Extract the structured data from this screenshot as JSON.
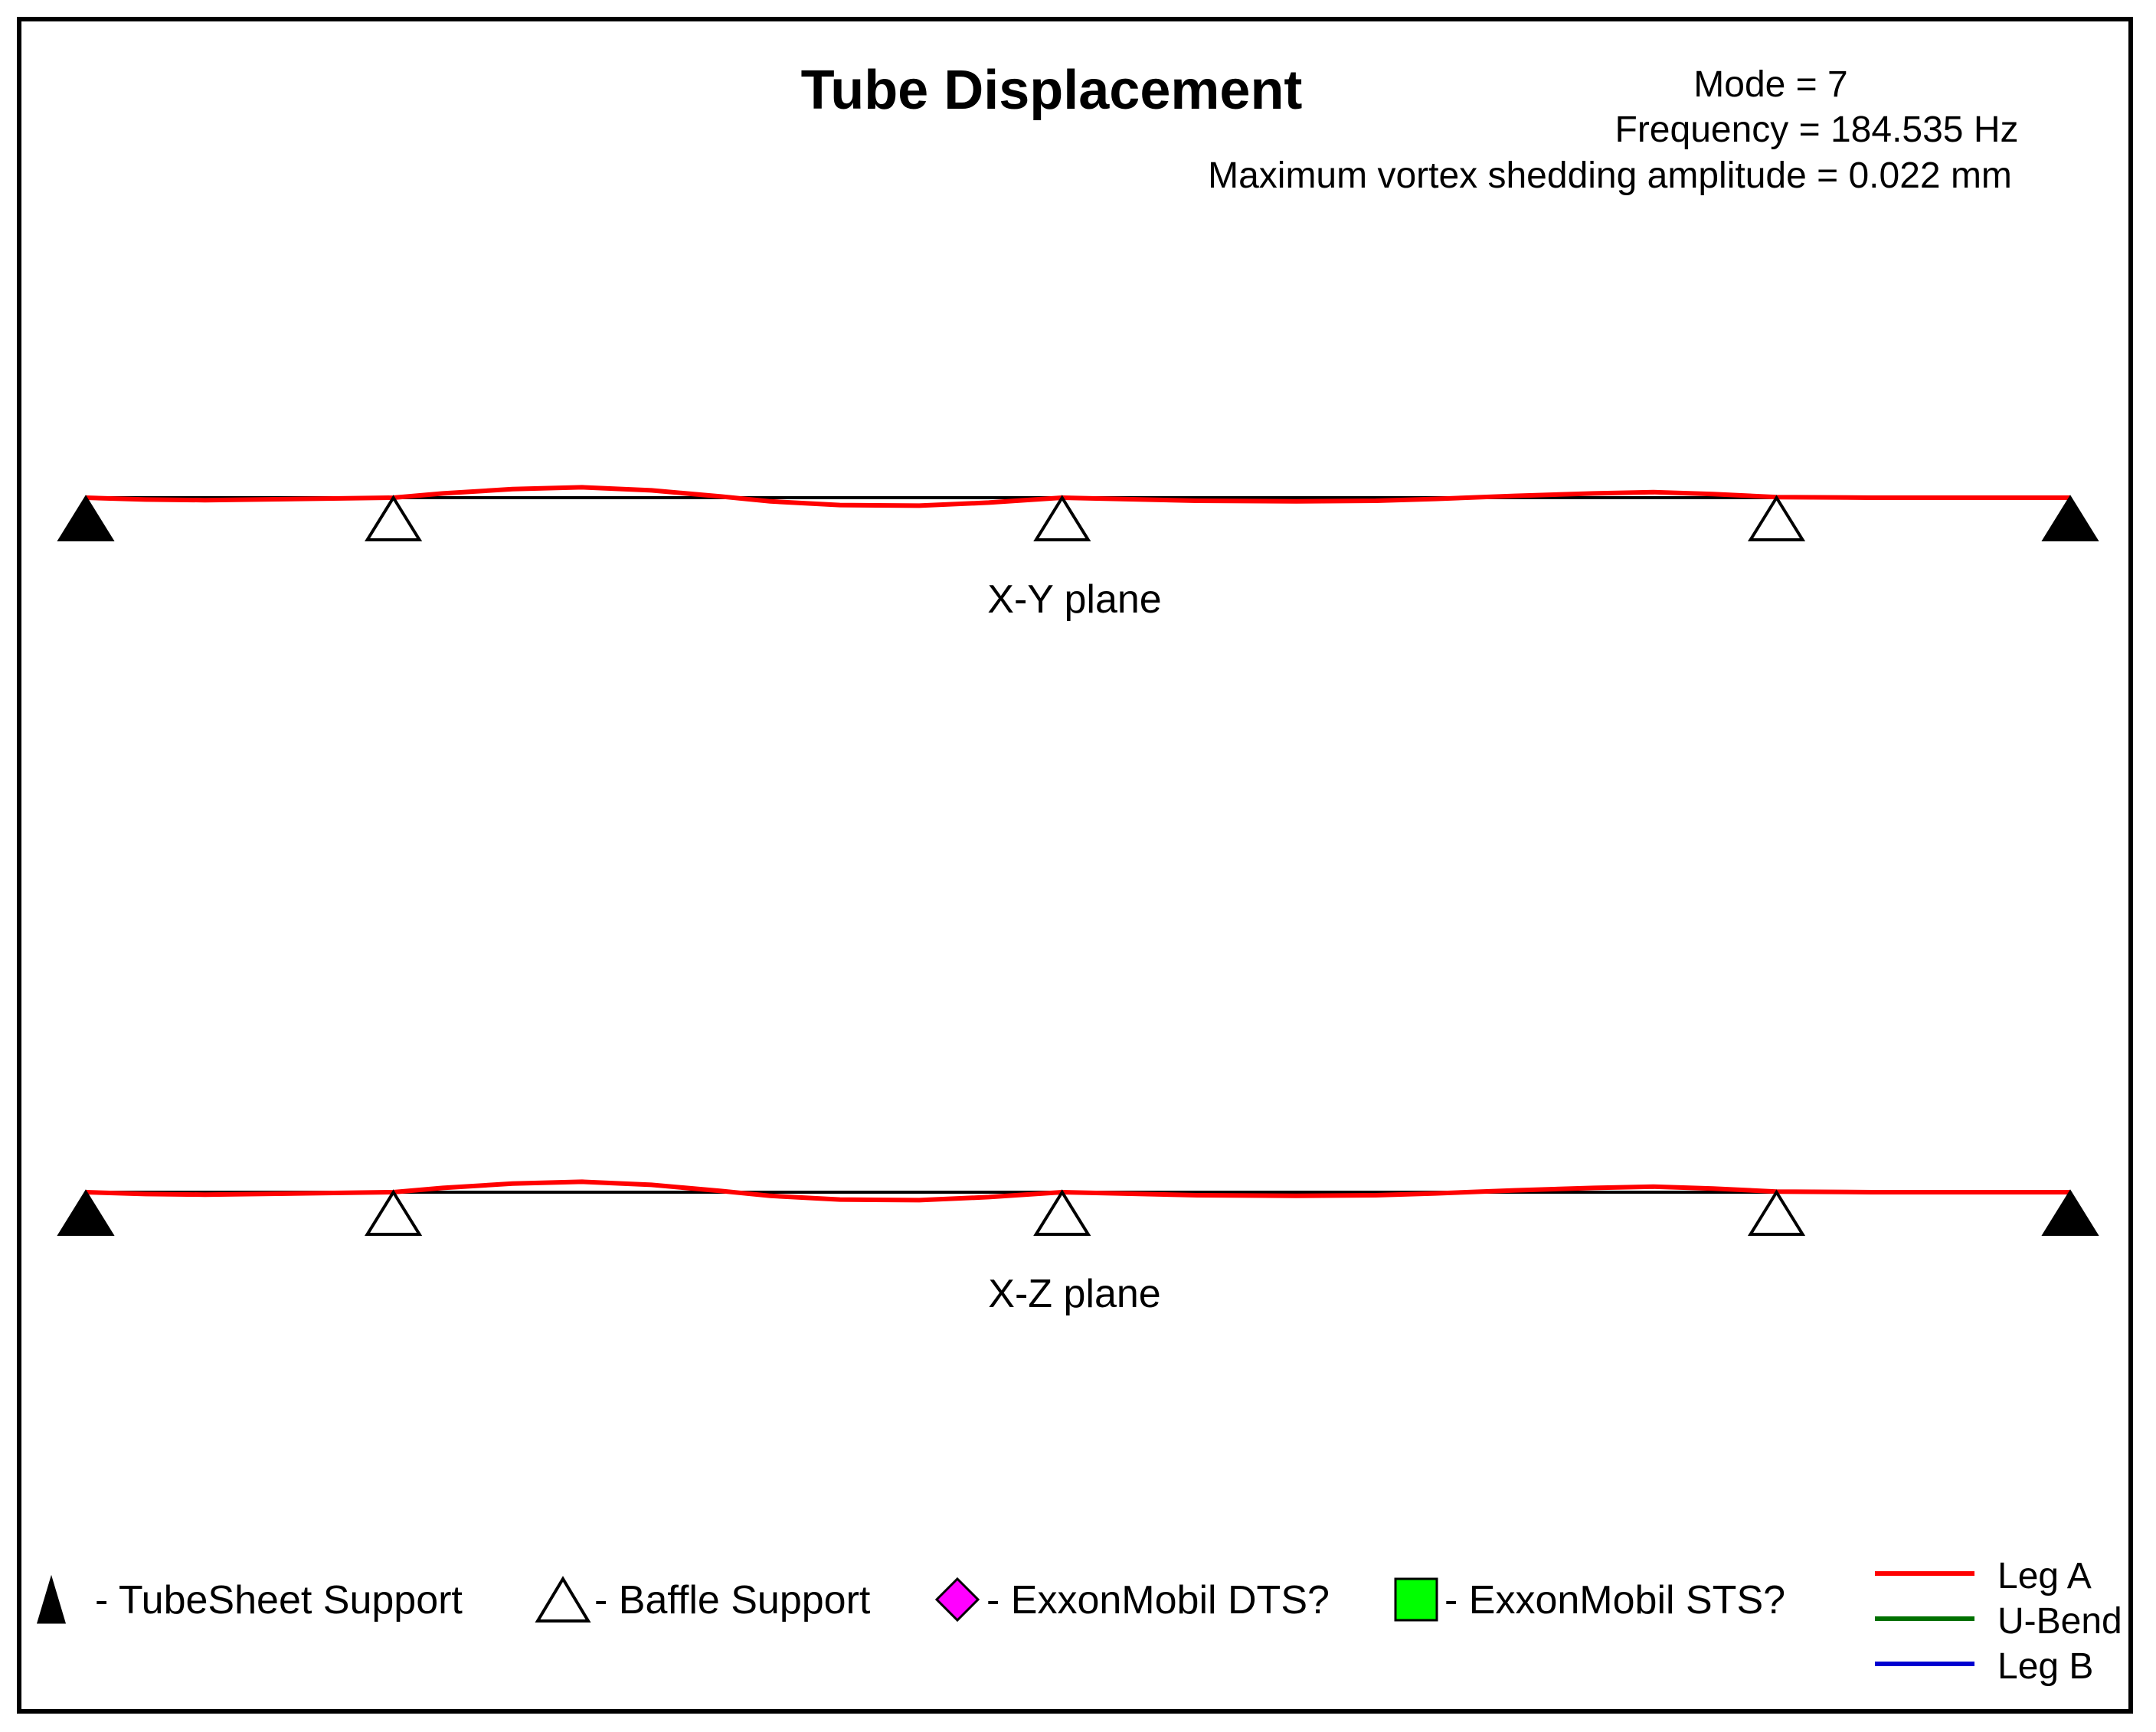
{
  "chart_data": {
    "type": "line",
    "title": "Tube Displacement",
    "info": {
      "mode": "Mode = 7",
      "frequency": "Frequency = 184.535 Hz",
      "amplitude": "Maximum vortex shedding amplitude = 0.022 mm"
    },
    "xlim": [
      0,
      1
    ],
    "ylim": [
      -1,
      1
    ],
    "supports": [
      {
        "x": 0.0,
        "type": "tubesheet"
      },
      {
        "x": 0.155,
        "type": "baffle"
      },
      {
        "x": 0.492,
        "type": "baffle"
      },
      {
        "x": 0.852,
        "type": "baffle"
      },
      {
        "x": 1.0,
        "type": "tubesheet"
      }
    ],
    "panels": [
      {
        "label": "X-Y plane",
        "series": [
          {
            "name": "Leg A",
            "x": [
              0,
              0.03,
              0.06,
              0.155,
              0.18,
              0.215,
              0.25,
              0.285,
              0.32,
              0.345,
              0.38,
              0.42,
              0.455,
              0.492,
              0.52,
              0.56,
              0.61,
              0.65,
              0.68,
              0.72,
              0.76,
              0.79,
              0.82,
              0.852,
              0.9,
              0.95,
              1.0
            ],
            "y": [
              0,
              -0.15,
              -0.2,
              0,
              0.35,
              0.7,
              0.85,
              0.6,
              0.1,
              -0.3,
              -0.6,
              -0.65,
              -0.4,
              0,
              -0.1,
              -0.25,
              -0.3,
              -0.25,
              -0.1,
              0.15,
              0.35,
              0.45,
              0.3,
              0.05,
              0,
              0,
              0
            ]
          }
        ]
      },
      {
        "label": "X-Z plane",
        "series": [
          {
            "name": "Leg A",
            "x": [
              0,
              0.03,
              0.06,
              0.155,
              0.18,
              0.215,
              0.25,
              0.285,
              0.32,
              0.345,
              0.38,
              0.42,
              0.455,
              0.492,
              0.52,
              0.56,
              0.61,
              0.65,
              0.68,
              0.72,
              0.76,
              0.79,
              0.82,
              0.852,
              0.9,
              0.95,
              1.0
            ],
            "y": [
              0,
              -0.15,
              -0.2,
              0,
              0.35,
              0.7,
              0.85,
              0.6,
              0.1,
              -0.3,
              -0.6,
              -0.65,
              -0.4,
              0,
              -0.1,
              -0.25,
              -0.3,
              -0.25,
              -0.1,
              0.15,
              0.35,
              0.45,
              0.3,
              0.05,
              0,
              0,
              0
            ]
          }
        ]
      }
    ],
    "legend": {
      "markers": [
        {
          "symbol": "filled-triangle",
          "label": "- TubeSheet Support",
          "color": "#000000"
        },
        {
          "symbol": "open-triangle",
          "label": "- Baffle Support",
          "color": "#000000"
        },
        {
          "symbol": "diamond",
          "label": "- ExxonMobil DTS?",
          "color": "#ff00ff"
        },
        {
          "symbol": "square",
          "label": "- ExxonMobil STS?",
          "color": "#00ff00"
        }
      ],
      "lines": [
        {
          "label": "Leg A",
          "color": "#ff0000"
        },
        {
          "label": "U-Bend",
          "color": "#007000"
        },
        {
          "label": "Leg B",
          "color": "#0000d0"
        }
      ]
    }
  }
}
